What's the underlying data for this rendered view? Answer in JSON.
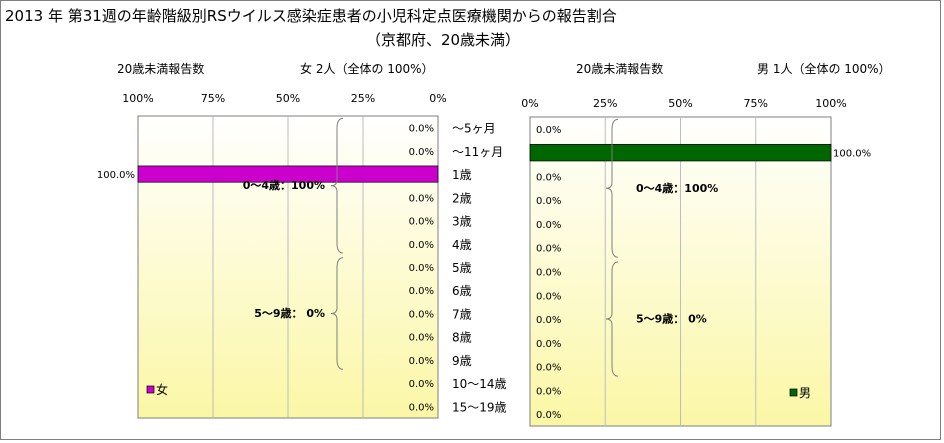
{
  "title": "2013 年 第31週の年齢階級別RSウイルス感染症患者の小児科定点医療機関からの報告割合",
  "subtitle": "（京都府、20歳未満）",
  "colors": {
    "female_bar": "#cc00cc",
    "male_bar": "#006600",
    "plot_top": "#ffffff",
    "plot_bottom": "#fbf7a6",
    "grid": "#bdbdbd",
    "brace": "#7f7f7f"
  },
  "chart_data": [
    {
      "type": "bar",
      "orientation": "horizontal",
      "direction": "right-to-left",
      "header_label": "20歳未満報告数",
      "header_count": "女  2人（全体の  100%）",
      "x_ticks": [
        "100%",
        "75%",
        "50%",
        "25%",
        "0%"
      ],
      "xlim": [
        0,
        100
      ],
      "categories": [
        "～5ヶ月",
        "～11ヶ月",
        "1歳",
        "2歳",
        "3歳",
        "4歳",
        "5歳",
        "6歳",
        "7歳",
        "8歳",
        "9歳",
        "10～14歳",
        "15～19歳"
      ],
      "series": [
        {
          "name": "女",
          "values": [
            0,
            0,
            100,
            0,
            0,
            0,
            0,
            0,
            0,
            0,
            0,
            0,
            0
          ],
          "labels": [
            "0.0%",
            "0.0%",
            "100.0%",
            "0.0%",
            "0.0%",
            "0.0%",
            "0.0%",
            "0.0%",
            "0.0%",
            "0.0%",
            "0.0%",
            "0.0%",
            "0.0%"
          ]
        }
      ],
      "annotations": [
        "0～4歳：100%",
        "5～9歳：  0%"
      ],
      "legend": "bottom-left",
      "grid": true
    },
    {
      "type": "bar",
      "orientation": "horizontal",
      "direction": "left-to-right",
      "header_label": "20歳未満報告数",
      "header_count": "男  1人（全体の  100%）",
      "x_ticks": [
        "0%",
        "25%",
        "50%",
        "75%",
        "100%"
      ],
      "xlim": [
        0,
        100
      ],
      "categories": [
        "～5ヶ月",
        "～11ヶ月",
        "1歳",
        "2歳",
        "3歳",
        "4歳",
        "5歳",
        "6歳",
        "7歳",
        "8歳",
        "9歳",
        "10～14歳",
        "15～19歳"
      ],
      "series": [
        {
          "name": "男",
          "values": [
            0,
            100,
            0,
            0,
            0,
            0,
            0,
            0,
            0,
            0,
            0,
            0,
            0
          ],
          "labels": [
            "0.0%",
            "100.0%",
            "0.0%",
            "0.0%",
            "0.0%",
            "0.0%",
            "0.0%",
            "0.0%",
            "0.0%",
            "0.0%",
            "0.0%",
            "0.0%",
            "0.0%"
          ]
        }
      ],
      "annotations": [
        "0～4歳：100%",
        "5～9歳：  0%"
      ],
      "legend": "bottom-right",
      "grid": true
    }
  ]
}
